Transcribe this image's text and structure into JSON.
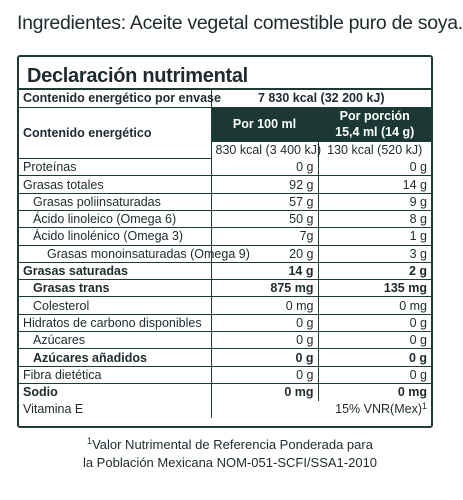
{
  "ingredients": "Ingredientes: Aceite vegetal comestible puro de soya.",
  "panel": {
    "title": "Declaración nutrimental",
    "energy_per_package_label": "Contenido energético por envase",
    "energy_per_package_value": "7 830 kcal (32 200 kJ)",
    "energy_label": "Contenido energético",
    "col_100": "Por 100 ml",
    "col_portion_line1": "Por porción",
    "col_portion_line2": "15,4 ml (14 g)",
    "energy_100": "830 kcal (3 400 kJ)",
    "energy_portion": "130 kcal (520 kJ)",
    "rows": [
      {
        "label": "Proteínas",
        "v100": "0 g",
        "vpor": "0 g"
      },
      {
        "label": "Grasas totales",
        "v100": "92 g",
        "vpor": "14 g"
      },
      {
        "label": "Grasas poliinsaturadas",
        "v100": "57 g",
        "vpor": "9 g"
      },
      {
        "label": "Ácido linoleico (Omega 6)",
        "v100": "50 g",
        "vpor": "8 g"
      },
      {
        "label": "Ácido linolénico (Omega 3)",
        "v100": "7g",
        "vpor": "1 g"
      },
      {
        "label": "Grasas monoinsaturadas (Omega 9)",
        "v100": "20 g",
        "vpor": "3 g"
      },
      {
        "label": "Grasas saturadas",
        "v100": "14 g",
        "vpor": "2 g"
      },
      {
        "label": "Grasas trans",
        "v100": "875 mg",
        "vpor": "135 mg"
      },
      {
        "label": "Colesterol",
        "v100": "0 mg",
        "vpor": "0 mg"
      },
      {
        "label": "Hidratos de carbono disponibles",
        "v100": "0 g",
        "vpor": "0 g"
      },
      {
        "label": "Azúcares",
        "v100": "0 g",
        "vpor": "0 g"
      },
      {
        "label": "Azúcares añadidos",
        "v100": "0 g",
        "vpor": "0 g"
      },
      {
        "label": "Fibra dietética",
        "v100": "0 g",
        "vpor": "0 g"
      },
      {
        "label": "Sodio",
        "v100": "0 mg",
        "vpor": "0 mg"
      }
    ],
    "vitamin_label": "Vitamina E",
    "vitamin_value": "15% VNR(Mex)",
    "vitamin_sup": "1"
  },
  "footnote": {
    "sup": "1",
    "line1": "Valor Nutrimental de Referencia Ponderada para",
    "line2": "la Población Mexicana NOM-051-SCFI/SSA1-2010"
  }
}
